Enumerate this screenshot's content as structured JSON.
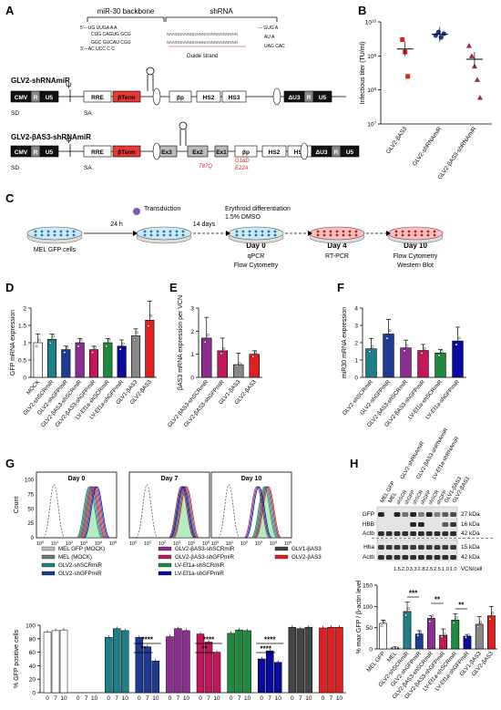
{
  "panel_labels": [
    "A",
    "B",
    "C",
    "D",
    "E",
    "F",
    "G",
    "H"
  ],
  "panelA": {
    "bracket_backbone": "miR-30 backbone",
    "bracket_shrna": "shRNA",
    "seq_top": "5'---UG    UUGA    A    A",
    "seq_top2": "CUG    CAGUG GCG",
    "seq_bot2": "GGC    GUCAU CGU",
    "seq_bot": "3'---AC    UCC    C    C",
    "guide_label": "Guide strand",
    "construct1_title": "GLV2-shRNAmiR",
    "construct2_title": "GLV2-βAS3-shRNAmiR",
    "elements1": [
      "CMV",
      "R",
      "U5",
      "RRE",
      "βTerm",
      "βp",
      "HS2",
      "HS3",
      "ΔU3",
      "R",
      "U5"
    ],
    "elements2": [
      "CMV",
      "R",
      "U5",
      "RRE",
      "βTerm",
      "Ex3",
      "Ex2",
      "Ex1",
      "βp",
      "HS2",
      "HS3",
      "ΔU3",
      "R",
      "U5"
    ],
    "sd": "SD",
    "sa": "SA",
    "psi": "Ψ",
    "mutations": [
      "T87Q",
      "G16D",
      "E22A"
    ]
  },
  "panelB": {
    "chart_data": {
      "type": "scatter",
      "ylabel": "Infectious titer (TU/ml)",
      "yscale": "log",
      "ylim": [
        10000000.0,
        10000000000.0
      ],
      "yticks": [
        "10^7",
        "10^8",
        "10^9",
        "10^10"
      ],
      "categories": [
        "GLV2-βAS3",
        "GLV2-shRNAmiR",
        "GLV2-βAS3-shRNAmiR"
      ],
      "colors": [
        "#e02020",
        "#1f3a93",
        "#a0205a"
      ],
      "points": [
        [
          3000000000.0,
          1300000000.0,
          250000000.0
        ],
        [
          4000000000.0,
          5000000000.0,
          3500000000.0,
          4500000000.0
        ],
        [
          2000000000.0,
          1000000000.0,
          500000000.0,
          200000000.0,
          60000000.0
        ]
      ],
      "means": [
        1600000000.0,
        4300000000.0,
        800000000.0
      ]
    }
  },
  "panelC": {
    "cells_label": "MEL GFP cells",
    "t24": "24 h",
    "transduction": "Transduction",
    "t14": "14 days",
    "diff1": "Erythroid differentiation",
    "diff2": "1.5% DMSO",
    "day0": "Day 0",
    "day0_a": "qPCR",
    "day0_b": "Flow Cytometry",
    "day4": "Day 4",
    "day4_a": "RT-PCR",
    "day10": "Day 10",
    "day10_a": "Flow Cytometry",
    "day10_b": "Western Blot"
  },
  "panelD": {
    "chart_data": {
      "type": "bar",
      "ylabel": "GFP mRNA expression",
      "ylim": [
        0,
        2
      ],
      "yticks": [
        "0",
        "0.5",
        "1",
        "1.5",
        "2"
      ],
      "categories": [
        "MOCK",
        "GLV2-shSCRmiR",
        "GLV2-shGFPmiR",
        "GLV2-βAS3-shSCRmiR",
        "GLV2-βAS3-shGFPmiR",
        "LV-Ef1a-shSCRmiR",
        "LV-Ef1a-shGFPmiR",
        "GLV1-βAS3",
        "GLV2-βAS3"
      ],
      "values": [
        1.0,
        1.1,
        0.8,
        1.0,
        0.8,
        1.0,
        0.9,
        1.2,
        1.65
      ],
      "errors": [
        0.25,
        0.15,
        0.1,
        0.12,
        0.1,
        0.12,
        0.18,
        0.2,
        0.55
      ],
      "colors": [
        "#ffffff",
        "#1f7f86",
        "#1f3a93",
        "#8a2f8f",
        "#c2185b",
        "#1e8a3e",
        "#0a0aa0",
        "#888888",
        "#e02020"
      ]
    }
  },
  "panelE": {
    "chart_data": {
      "type": "bar",
      "ylabel": "βAS3 mRNA expression per VCN",
      "ylim": [
        0,
        3
      ],
      "yticks": [
        "0",
        "1",
        "2",
        "3"
      ],
      "categories": [
        "GLV2-βAS3-shSCRmiR",
        "GLV2-βAS3-shGFPmiR",
        "GLV1-βAS3",
        "GLV2-βAS3"
      ],
      "values": [
        1.7,
        1.15,
        0.55,
        1.0
      ],
      "errors": [
        0.9,
        0.55,
        0.5,
        0.15
      ],
      "colors": [
        "#8a2f8f",
        "#c2185b",
        "#888888",
        "#e02020"
      ]
    }
  },
  "panelF": {
    "chart_data": {
      "type": "bar",
      "ylabel": "miR30 mRNA expression",
      "ylim": [
        0,
        4
      ],
      "yticks": [
        "0",
        "1",
        "2",
        "3",
        "4"
      ],
      "categories": [
        "GLV2-shSCRmiR",
        "GLV2-shGFPmiR",
        "GLV2-βAS3-shSCRmiR",
        "GLV2-βAS3-shGFPmiR",
        "LV-Ef1a-shSCRmiR",
        "LV-Ef1a-shGFPmiR"
      ],
      "values": [
        1.65,
        2.5,
        1.7,
        1.55,
        1.4,
        2.1
      ],
      "errors": [
        0.6,
        0.85,
        0.45,
        0.35,
        0.2,
        0.8
      ],
      "colors": [
        "#1f7f86",
        "#1f3a93",
        "#8a2f8f",
        "#c2185b",
        "#1e8a3e",
        "#0a0aa0"
      ]
    }
  },
  "panelG": {
    "histo_titles": [
      "Day 0",
      "Day 7",
      "Day 10"
    ],
    "histo_ylabel": "Count",
    "histo_xticks": [
      "10^0",
      "10^1",
      "10^2",
      "10^3",
      "10^4",
      "10^5"
    ],
    "histo_yticks": [
      "0",
      "25",
      "50",
      "75",
      "100"
    ],
    "legend": [
      {
        "label": "MEL GFP (MOCK)",
        "color": "#bbbbbb"
      },
      {
        "label": "MEL (MOCK)",
        "color": "#777777"
      },
      {
        "label": "GLV2-shSCRmiR",
        "color": "#1f7f86"
      },
      {
        "label": "GLV2-shGFPmiR",
        "color": "#1f3a93"
      },
      {
        "label": "GLV2-βAS3-shSCRmiR",
        "color": "#8a2f8f"
      },
      {
        "label": "GLV2-βAS3-shGFPmiR",
        "color": "#c2185b"
      },
      {
        "label": "LV-Ef1a-shSCRmiR",
        "color": "#1e8a3e"
      },
      {
        "label": "LV-Ef1a-shGFPmiR",
        "color": "#0a0aa0"
      },
      {
        "label": "GLV1-βAS3",
        "color": "#444444"
      },
      {
        "label": "GLV2-βAS3",
        "color": "#e02020"
      }
    ],
    "chart_data": {
      "type": "bar",
      "ylabel": "% GFP positive cells",
      "ylim": [
        0,
        100
      ],
      "yticks": [
        "0",
        "20",
        "40",
        "60",
        "80",
        "100"
      ],
      "xtick_labels": [
        "0",
        "7",
        "10"
      ],
      "groups": [
        {
          "name": "MEL GFP (MOCK)",
          "color": "#ffffff",
          "values": [
            90,
            92,
            93
          ]
        },
        {
          "name": "MEL (MOCK)",
          "color": "#777777",
          "values": [
            0,
            0,
            0
          ]
        },
        {
          "name": "GLV2-shSCRmiR",
          "color": "#1f7f86",
          "values": [
            82,
            95,
            92
          ]
        },
        {
          "name": "GLV2-shGFPmiR",
          "color": "#1f3a93",
          "values": [
            82,
            68,
            47
          ]
        },
        {
          "name": "GLV2-βAS3-shSCRmiR",
          "color": "#8a2f8f",
          "values": [
            83,
            95,
            92
          ]
        },
        {
          "name": "GLV2-βAS3-shGFPmiR",
          "color": "#c2185b",
          "values": [
            87,
            75,
            60
          ]
        },
        {
          "name": "LV-Ef1a-shSCRmiR",
          "color": "#1e8a3e",
          "values": [
            88,
            93,
            92
          ]
        },
        {
          "name": "LV-Ef1a-shGFPmiR",
          "color": "#0a0aa0",
          "values": [
            50,
            62,
            45
          ]
        },
        {
          "name": "GLV1-βAS3",
          "color": "#444444",
          "values": [
            97,
            95,
            97
          ]
        },
        {
          "name": "GLV2-βAS3",
          "color": "#e02020",
          "values": [
            96,
            97,
            97
          ]
        }
      ],
      "significance": [
        "****",
        "**",
        "****",
        "**",
        "****",
        "****"
      ]
    }
  },
  "panelH": {
    "lanes": [
      "MEL GFP",
      "MEL",
      "GLV2-shRNAmiR",
      "GLV2-βAS3-shRNAmiR",
      "LV-Ef1a-shRNAmiR",
      "GLV1-βAS3",
      "GLV2-βAS3"
    ],
    "sublanes": [
      "shSCR",
      "shGFP",
      "shSCR",
      "shGFP",
      "shSCR",
      "shGFP"
    ],
    "rows": [
      "GFP",
      "HBB",
      "Actb",
      "Hba",
      "Actb"
    ],
    "kda": [
      "27 kDa",
      "16 kDa",
      "42 kDa",
      "15 kDa",
      "42 kDa"
    ],
    "vcn": [
      "1.5",
      "2.0",
      "3.3",
      "2.8",
      "2.5",
      "2.5",
      "1.0",
      "1.0"
    ],
    "vcn_label": "VCN/cell",
    "chart_data": {
      "type": "bar",
      "ylabel": "% max GFP / β-actin level",
      "ylim": [
        0,
        150
      ],
      "yticks": [
        "0",
        "50",
        "100",
        "150"
      ],
      "categories": [
        "MEL GFP",
        "MEL",
        "GLV2-shSCRmiR",
        "GLV2-shGFPmiR",
        "GLV2-βAS3-shSCRmiR",
        "GLV2-βAS3-shGFPmiR",
        "LV-Ef1a-shSCRmiR",
        "LV-Ef1a-shGFPmiR",
        "GLV1-βAS3",
        "GLV2-βAS3"
      ],
      "values": [
        60,
        3,
        88,
        35,
        72,
        32,
        68,
        30,
        58,
        78
      ],
      "errors": [
        8,
        2,
        22,
        8,
        6,
        15,
        15,
        4,
        18,
        22
      ],
      "colors": [
        "#ffffff",
        "#777777",
        "#1f7f86",
        "#1f3a93",
        "#8a2f8f",
        "#c2185b",
        "#1e8a3e",
        "#0a0aa0",
        "#888888",
        "#e02020"
      ],
      "significance": [
        "***",
        "**",
        "**"
      ]
    }
  }
}
